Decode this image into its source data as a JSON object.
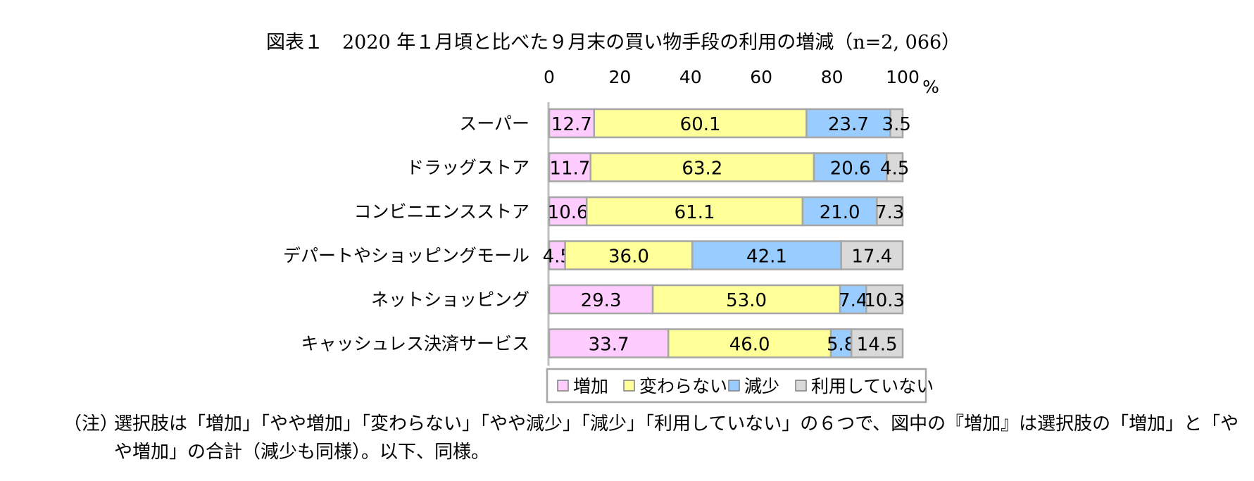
{
  "title": "図表１　2020 年１月頃と比べた９月末の買い物手段の利用の増減（n=2, 066）",
  "chart_data": {
    "type": "bar",
    "orientation": "horizontal",
    "stacked": true,
    "unit": "%",
    "xlim": [
      0,
      100
    ],
    "xticks": [
      0,
      20,
      40,
      60,
      80,
      100
    ],
    "categories": [
      "スーパー",
      "ドラッグストア",
      "コンビニエンスストア",
      "デパートやショッピングモール",
      "ネットショッピング",
      "キャッシュレス決済サービス"
    ],
    "series": [
      {
        "name": "増加",
        "color": "#ffccff",
        "values": [
          12.7,
          11.7,
          10.6,
          4.5,
          29.3,
          33.7
        ]
      },
      {
        "name": "変わらない",
        "color": "#ffff99",
        "values": [
          60.1,
          63.2,
          61.1,
          36.0,
          53.0,
          46.0
        ]
      },
      {
        "name": "減少",
        "color": "#99ccff",
        "values": [
          23.7,
          20.6,
          21.0,
          42.1,
          7.4,
          5.8
        ]
      },
      {
        "name": "利用していない",
        "color": "#d9d9d9",
        "values": [
          3.5,
          4.5,
          7.3,
          17.4,
          10.3,
          14.5
        ]
      }
    ],
    "legend_position": "bottom"
  },
  "note": {
    "label": "（注）",
    "text": "選択肢は「増加」「やや増加」「変わらない」「やや減少」「減少」「利用していない」の６つで、図中の『増加』は選択肢の「増加」と「やや増加」の合計（減少も同様）。以下、同様。"
  }
}
